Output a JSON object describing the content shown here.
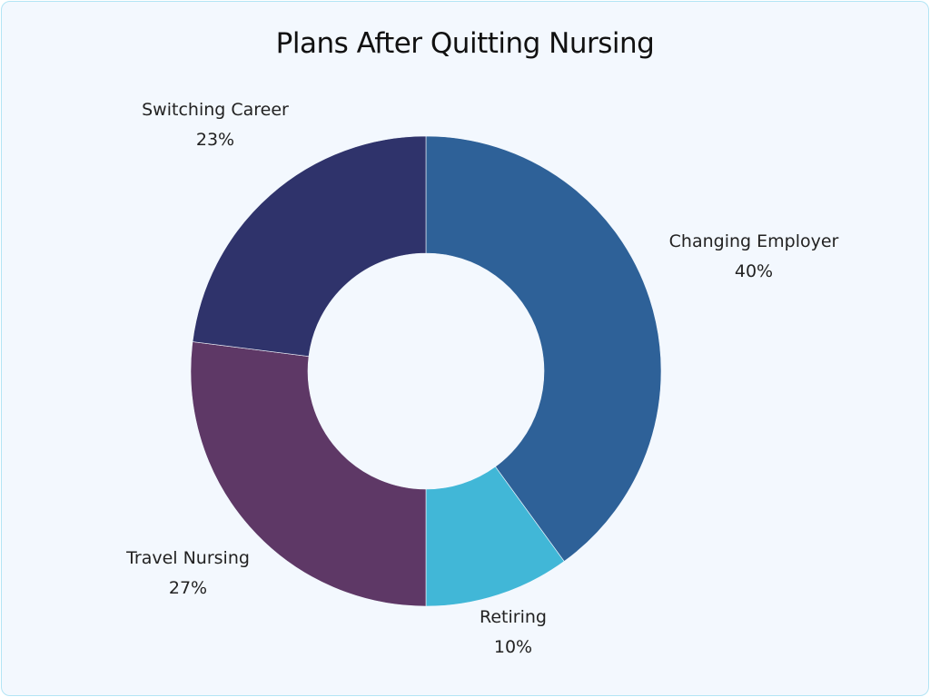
{
  "chart_data": {
    "type": "pie",
    "donut": true,
    "title": "Plans After Quitting Nursing",
    "slices": [
      {
        "label": "Changing Employer",
        "value": 40,
        "display": "40%",
        "color": "#2e6198"
      },
      {
        "label": "Retiring",
        "value": 10,
        "display": "10%",
        "color": "#41b7d7"
      },
      {
        "label": "Travel Nursing",
        "value": 27,
        "display": "27%",
        "color": "#5e3866"
      },
      {
        "label": "Switching Career",
        "value": 23,
        "display": "23%",
        "color": "#2f336b"
      }
    ],
    "start_angle": "top",
    "direction": "clockwise",
    "legend": "none"
  }
}
